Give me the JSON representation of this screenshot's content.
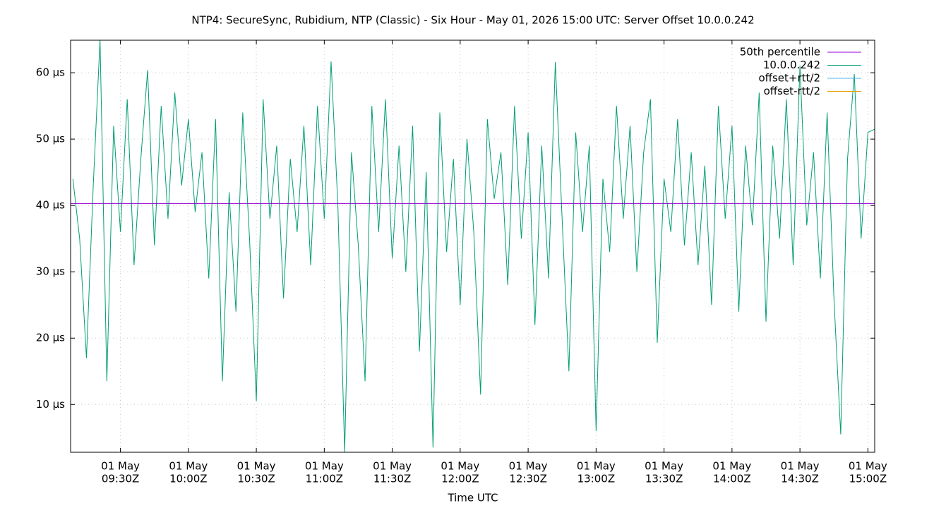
{
  "chart_data": {
    "type": "line",
    "title": "NTP4: SecureSync, Rubidium, NTP (Classic) - Six Hour - May 01, 2026 15:00 UTC: Server Offset 10.0.0.242",
    "xlabel": "Time UTC",
    "xlim": [
      "09:08",
      "15:03"
    ],
    "ylim": [
      2.8,
      64.9
    ],
    "grid": true,
    "legend": "top-right",
    "xticks": [
      {
        "value": "09:30",
        "label": [
          "01 May",
          "09:30Z"
        ]
      },
      {
        "value": "10:00",
        "label": [
          "01 May",
          "10:00Z"
        ]
      },
      {
        "value": "10:30",
        "label": [
          "01 May",
          "10:30Z"
        ]
      },
      {
        "value": "11:00",
        "label": [
          "01 May",
          "11:00Z"
        ]
      },
      {
        "value": "11:30",
        "label": [
          "01 May",
          "11:30Z"
        ]
      },
      {
        "value": "12:00",
        "label": [
          "01 May",
          "12:00Z"
        ]
      },
      {
        "value": "12:30",
        "label": [
          "01 May",
          "12:30Z"
        ]
      },
      {
        "value": "13:00",
        "label": [
          "01 May",
          "13:00Z"
        ]
      },
      {
        "value": "13:30",
        "label": [
          "01 May",
          "13:30Z"
        ]
      },
      {
        "value": "14:00",
        "label": [
          "01 May",
          "14:00Z"
        ]
      },
      {
        "value": "14:30",
        "label": [
          "01 May",
          "14:30Z"
        ]
      },
      {
        "value": "15:00",
        "label": [
          "01 May",
          "15:00Z"
        ]
      }
    ],
    "yticks": [
      {
        "value": 10,
        "label": "10 µs"
      },
      {
        "value": 20,
        "label": "20 µs"
      },
      {
        "value": 30,
        "label": "30 µs"
      },
      {
        "value": 40,
        "label": "40 µs"
      },
      {
        "value": 50,
        "label": "50 µs"
      },
      {
        "value": 60,
        "label": "60 µs"
      }
    ],
    "series": [
      {
        "name": "50th percentile",
        "color": "#9400d3",
        "x": [
          "09:08",
          "15:03"
        ],
        "values": [
          40.3,
          40.3
        ]
      },
      {
        "name": "10.0.0.242",
        "color": "#009e73",
        "x": [
          "09:09",
          "09:12",
          "09:15",
          "09:18",
          "09:21",
          "09:24",
          "09:27",
          "09:30",
          "09:33",
          "09:36",
          "09:39",
          "09:42",
          "09:45",
          "09:48",
          "09:51",
          "09:54",
          "09:57",
          "10:00",
          "10:03",
          "10:06",
          "10:09",
          "10:12",
          "10:15",
          "10:18",
          "10:21",
          "10:24",
          "10:27",
          "10:30",
          "10:33",
          "10:36",
          "10:39",
          "10:42",
          "10:45",
          "10:48",
          "10:51",
          "10:54",
          "10:57",
          "11:00",
          "11:03",
          "11:06",
          "11:09",
          "11:12",
          "11:15",
          "11:18",
          "11:21",
          "11:24",
          "11:27",
          "11:30",
          "11:33",
          "11:36",
          "11:39",
          "11:42",
          "11:45",
          "11:48",
          "11:51",
          "11:54",
          "11:57",
          "12:00",
          "12:03",
          "12:06",
          "12:09",
          "12:12",
          "12:15",
          "12:18",
          "12:21",
          "12:24",
          "12:27",
          "12:30",
          "12:33",
          "12:36",
          "12:39",
          "12:42",
          "12:45",
          "12:48",
          "12:51",
          "12:54",
          "12:57",
          "13:00",
          "13:03",
          "13:06",
          "13:09",
          "13:12",
          "13:15",
          "13:18",
          "13:21",
          "13:24",
          "13:27",
          "13:30",
          "13:33",
          "13:36",
          "13:39",
          "13:42",
          "13:45",
          "13:48",
          "13:51",
          "13:54",
          "13:57",
          "14:00",
          "14:03",
          "14:06",
          "14:09",
          "14:12",
          "14:15",
          "14:18",
          "14:21",
          "14:24",
          "14:27",
          "14:30",
          "14:33",
          "14:36",
          "14:39",
          "14:42",
          "14:45",
          "14:48",
          "14:51",
          "14:54",
          "14:57",
          "15:00",
          "15:03"
        ],
        "values": [
          44,
          35,
          17,
          43,
          65,
          13.5,
          52,
          36,
          56,
          31,
          47,
          60.4,
          34,
          55,
          38,
          57,
          43,
          53,
          39,
          48,
          29,
          53,
          13.5,
          42,
          24,
          54,
          35,
          10.5,
          56,
          38,
          49,
          26,
          47,
          36,
          52,
          31,
          55,
          38,
          61.7,
          40,
          2.8,
          48,
          34,
          13.5,
          55,
          36,
          56,
          32,
          49,
          30,
          52,
          18,
          45,
          3.5,
          54,
          33,
          47,
          25,
          50,
          36,
          11.5,
          53,
          41,
          48,
          28,
          55,
          35,
          51,
          22,
          49,
          29,
          61.6,
          38,
          15,
          51,
          36,
          49,
          6,
          44,
          33,
          55,
          38,
          52,
          30,
          48,
          56,
          19.3,
          44,
          36,
          53,
          34,
          48,
          31,
          46,
          25,
          55,
          38,
          52,
          24,
          49,
          37,
          57,
          22.5,
          49,
          35,
          56,
          31,
          61,
          37,
          48,
          29,
          54,
          26,
          5.5,
          47,
          59.8,
          35,
          51,
          51.5
        ]
      },
      {
        "name": "offset+rtt/2",
        "color": "#56b4e9",
        "x": [],
        "values": []
      },
      {
        "name": "offset-rtt/2",
        "color": "#e69f00",
        "x": [],
        "values": []
      }
    ]
  }
}
